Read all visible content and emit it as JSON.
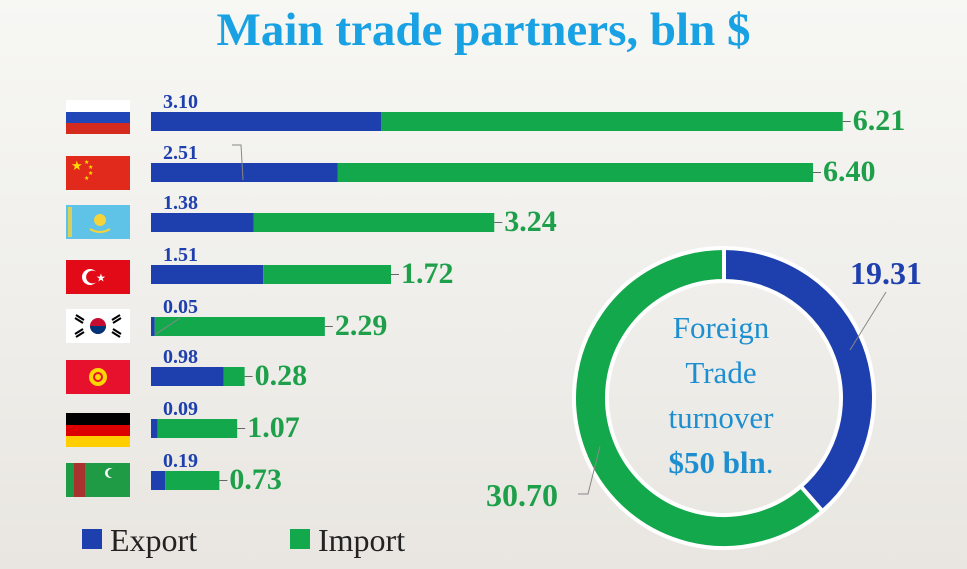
{
  "title": "Main trade partners, bln $",
  "colors": {
    "export": "#1e3fae",
    "import": "#12a84b",
    "title": "#18a1e3",
    "center_text": "#1d8fd0"
  },
  "legend": {
    "export": "Export",
    "import": "Import"
  },
  "donut": {
    "center_lines": [
      "Foreign",
      "Trade",
      "turnover"
    ],
    "center_value": "$50 bln",
    "center_suffix": "."
  },
  "chart_data": [
    {
      "type": "bar",
      "stacked": true,
      "orientation": "horizontal",
      "categories": [
        "Russia",
        "China",
        "Kazakhstan",
        "Turkey",
        "South Korea",
        "Kyrgyzstan",
        "Germany",
        "Turkmenistan"
      ],
      "category_icons": [
        "russia-flag-icon",
        "china-flag-icon",
        "kazakhstan-flag-icon",
        "turkey-flag-icon",
        "south-korea-flag-icon",
        "kyrgyzstan-flag-icon",
        "germany-flag-icon",
        "turkmenistan-flag-icon"
      ],
      "series": [
        {
          "name": "Export",
          "values": [
            3.1,
            2.51,
            1.38,
            1.51,
            0.05,
            0.98,
            0.09,
            0.19
          ]
        },
        {
          "name": "Import",
          "values": [
            6.21,
            6.4,
            3.24,
            1.72,
            2.29,
            0.28,
            1.07,
            0.73
          ]
        }
      ],
      "export_labels": [
        "3.10",
        "2.51",
        "1.38",
        "1.51",
        "0.05",
        "0.98",
        "0.09",
        "0.19"
      ],
      "import_labels": [
        "6.21",
        "6.40",
        "3.24",
        "1.72",
        "2.29",
        "0.28",
        "1.07",
        "0.73"
      ],
      "legend_position": "bottom-left"
    },
    {
      "type": "pie",
      "donut": true,
      "labels": [
        "Export",
        "Import"
      ],
      "values": [
        19.31,
        30.7
      ],
      "value_labels": [
        "19.31",
        "30.70"
      ]
    }
  ]
}
